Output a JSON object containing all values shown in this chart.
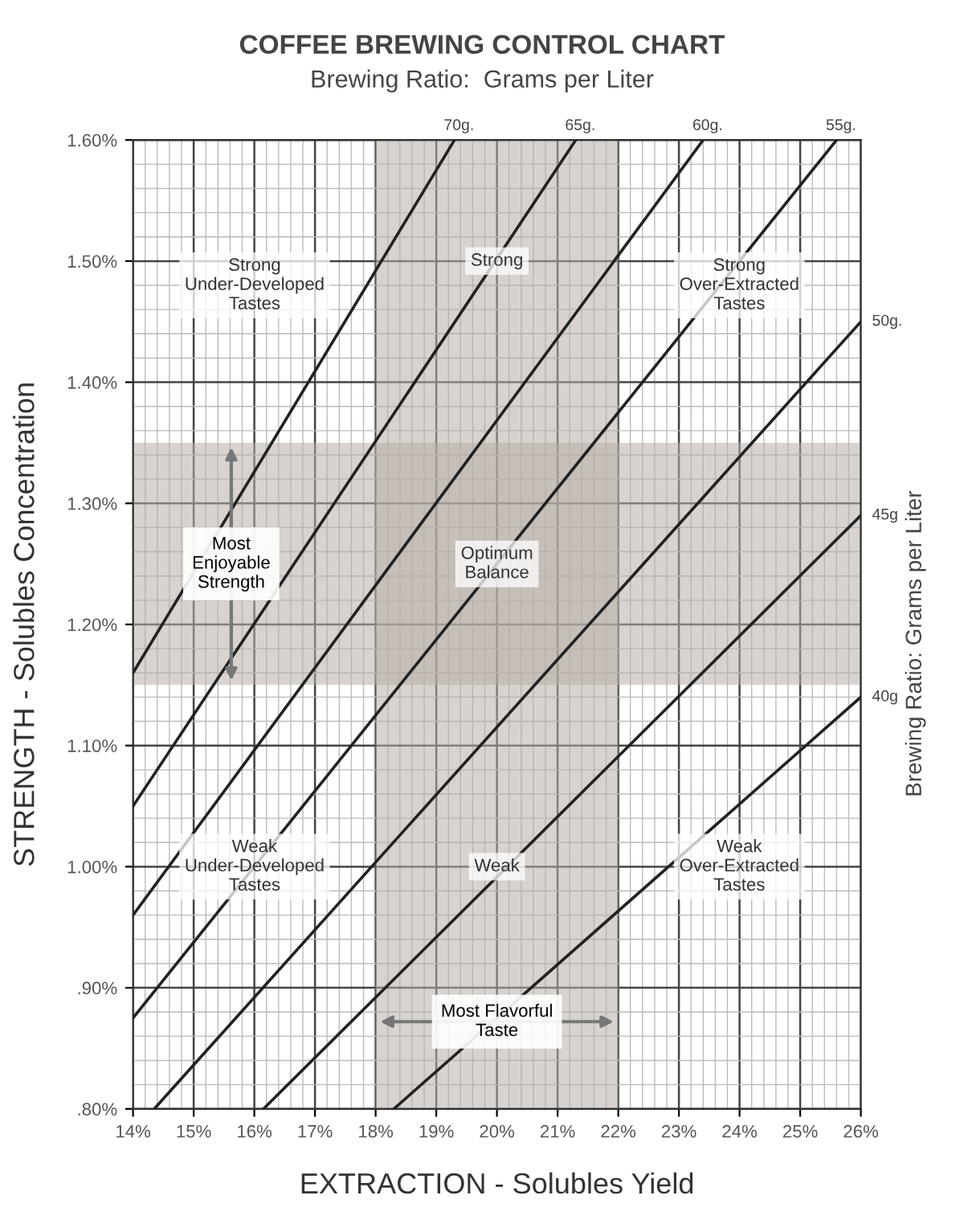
{
  "chart_data": {
    "type": "line",
    "title": "COFFEE BREWING CONTROL CHART",
    "subtitle": "Brewing Ratio:  Grams per Liter",
    "xlabel": "EXTRACTION - Solubles Yield",
    "ylabel": "STRENGTH - Solubles Concentration",
    "y2label": "Brewing Ratio: Grams per Liter",
    "series": [
      {
        "name": "70g.",
        "color": "#222222",
        "x": [
          14,
          19.3
        ],
        "values": [
          1.16,
          1.6
        ]
      },
      {
        "name": "65g.",
        "color": "#222222",
        "x": [
          14,
          21.3
        ],
        "values": [
          1.05,
          1.6
        ]
      },
      {
        "name": "60g.",
        "color": "#222222",
        "x": [
          14,
          23.4
        ],
        "values": [
          0.96,
          1.6
        ]
      },
      {
        "name": "55g.",
        "color": "#222222",
        "x": [
          14,
          25.6
        ],
        "values": [
          0.875,
          1.6
        ]
      },
      {
        "name": "50g.",
        "color": "#222222",
        "x": [
          14.35,
          26
        ],
        "values": [
          0.8,
          1.45
        ]
      },
      {
        "name": "45g",
        "color": "#222222",
        "x": [
          16.15,
          26
        ],
        "values": [
          0.8,
          1.29
        ]
      },
      {
        "name": "40g",
        "color": "#222222",
        "x": [
          18.3,
          26
        ],
        "values": [
          0.8,
          1.14
        ]
      }
    ],
    "bands": [
      {
        "axis": "x",
        "from": 18,
        "to": 22,
        "label": "Most Flavorful\nTaste",
        "color": "#b8afa6"
      },
      {
        "axis": "y",
        "from": 1.15,
        "to": 1.35,
        "label": "Most\nEnjoyable\nStrength",
        "color": "#b8afa6"
      }
    ],
    "annotations": [
      "Strong\nUnder-Developed\nTastes",
      "Strong",
      "Strong\nOver-Extracted\nTastes",
      "Optimum\nBalance",
      "Weak\nUnder-Developed\nTastes",
      "Weak",
      "Weak\nOver-Extracted\nTastes"
    ],
    "xlim": [
      14,
      26
    ],
    "xticks": [
      {
        "value": 14,
        "label": "14%"
      },
      {
        "value": 15,
        "label": "15%"
      },
      {
        "value": 16,
        "label": "16%"
      },
      {
        "value": 17,
        "label": "17%"
      },
      {
        "value": 18,
        "label": "18%"
      },
      {
        "value": 19,
        "label": "19%"
      },
      {
        "value": 20,
        "label": "20%"
      },
      {
        "value": 21,
        "label": "21%"
      },
      {
        "value": 22,
        "label": "22%"
      },
      {
        "value": 23,
        "label": "23%"
      },
      {
        "value": 24,
        "label": "24%"
      },
      {
        "value": 25,
        "label": "25%"
      },
      {
        "value": 26,
        "label": "26%"
      }
    ],
    "ylim": [
      0.8,
      1.6
    ],
    "yticks": [
      {
        "value": 0.8,
        "label": ".80%"
      },
      {
        "value": 0.9,
        "label": ".90%"
      },
      {
        "value": 1.0,
        "label": "1.00%"
      },
      {
        "value": 1.1,
        "label": "1.10%"
      },
      {
        "value": 1.2,
        "label": "1.20%"
      },
      {
        "value": 1.3,
        "label": "1.30%"
      },
      {
        "value": 1.4,
        "label": "1.40%"
      },
      {
        "value": 1.5,
        "label": "1.50%"
      },
      {
        "value": 1.6,
        "label": "1.60%"
      }
    ],
    "grid": true,
    "legend": false,
    "marker": "none",
    "line_style": "solid"
  }
}
